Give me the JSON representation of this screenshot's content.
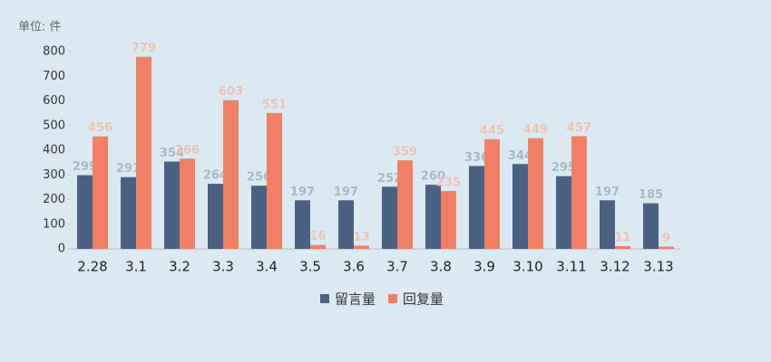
{
  "chart_data": {
    "type": "bar",
    "axis_label": "单位: 件",
    "categories": [
      "2.28",
      "3.1",
      "3.2",
      "3.3",
      "3.4",
      "3.5",
      "3.6",
      "3.7",
      "3.8",
      "3.9",
      "3.10",
      "3.11",
      "3.12",
      "3.13"
    ],
    "series": [
      {
        "name": "留言量",
        "color": "#4a6184",
        "values": [
          299,
          291,
          354,
          264,
          256,
          197,
          197,
          252,
          260,
          336,
          344,
          295,
          197,
          185
        ]
      },
      {
        "name": "回复量",
        "color": "#f07f63",
        "values": [
          456,
          779,
          366,
          603,
          551,
          16,
          13,
          359,
          235,
          445,
          449,
          457,
          11,
          9
        ]
      }
    ],
    "ylim": [
      0,
      800
    ],
    "yticks": [
      0,
      100,
      200,
      300,
      400,
      500,
      600,
      700,
      800
    ],
    "grid": false,
    "legend": "bottom"
  }
}
